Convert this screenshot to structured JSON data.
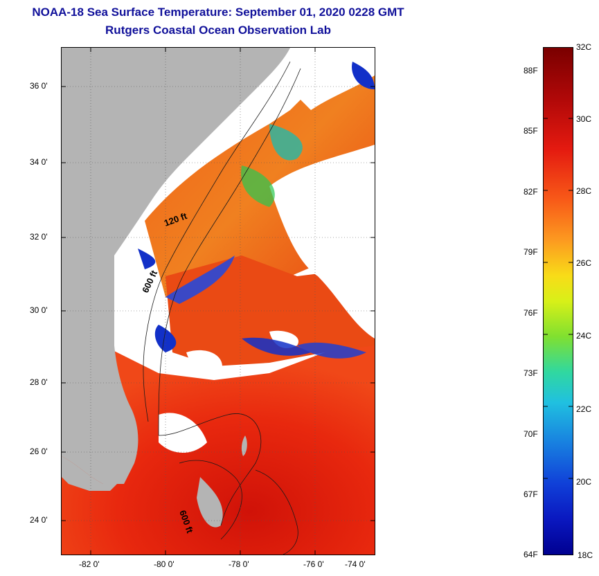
{
  "header": {
    "title": "NOAA-18 Sea Surface Temperature:  September 01, 2020 0228 GMT",
    "subtitle": "Rutgers Coastal Ocean Observation Lab"
  },
  "map": {
    "lat_labels": [
      "36 0'",
      "34 0'",
      "32 0'",
      "30 0'",
      "28 0'",
      "26 0'",
      "24 0'"
    ],
    "lon_labels": [
      "-82 0'",
      "-80 0'",
      "-78 0'",
      "-76 0'",
      "-74 0'"
    ],
    "isobath_labels": [
      "120 ft",
      "600 ft",
      "600 ft"
    ],
    "colors": {
      "land": "#b4b4b4",
      "cloud": "#ffffff",
      "ocean_warm": "#e8200e",
      "ocean_hot": "#b80c08",
      "cool": "#1230c8"
    }
  },
  "colorbar": {
    "celsius_labels": [
      "32C",
      "30C",
      "28C",
      "26C",
      "24C",
      "22C",
      "20C",
      "18C"
    ],
    "fahrenheit_labels": [
      "88F",
      "85F",
      "82F",
      "79F",
      "76F",
      "73F",
      "70F",
      "67F",
      "64F"
    ],
    "min_c": 18,
    "max_c": 32
  }
}
